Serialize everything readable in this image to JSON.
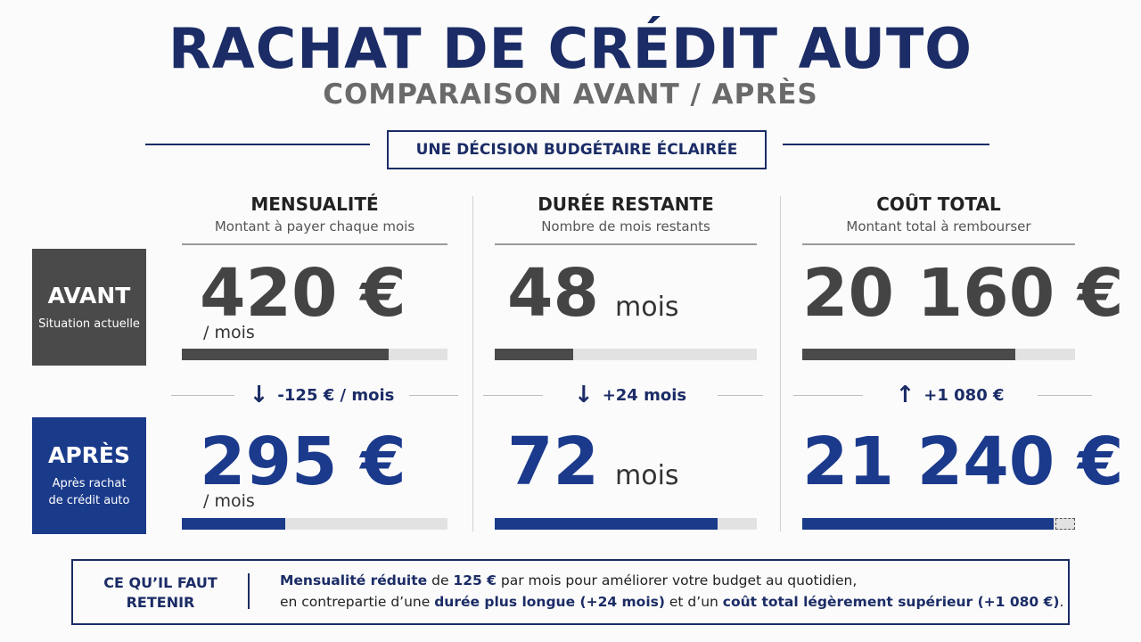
{
  "header": {
    "title": "RACHAT DE CRÉDIT AUTO",
    "subtitle": "COMPARAISON AVANT / APRÈS",
    "tagline": "UNE DÉCISION BUDGÉTAIRE ÉCLAIRÉE"
  },
  "rows": {
    "before": {
      "label": "AVANT",
      "caption": [
        "Situation actuelle"
      ]
    },
    "after": {
      "label": "APRÈS",
      "caption": [
        "Après rachat",
        "de crédit auto"
      ]
    }
  },
  "columns": [
    {
      "title": "MENSUALITÉ",
      "subtitle": "Montant à payer chaque mois",
      "before": {
        "value": "420 €",
        "unit": "/ mois"
      },
      "change": "-125 € / mois",
      "after": {
        "value": "295 €",
        "unit": "/ mois"
      }
    },
    {
      "title": "DURÉE RESTANTE",
      "subtitle": "Nombre de mois restants",
      "before": {
        "value": "48",
        "unit": "mois"
      },
      "change": "+24 mois",
      "after": {
        "value": "72",
        "unit": "mois"
      }
    },
    {
      "title": "COÛT TOTAL",
      "subtitle": "Montant total à rembourser",
      "before": {
        "value": "20 160 €"
      },
      "change": "+1 080 €",
      "after": {
        "value": "21 240 €"
      }
    }
  ],
  "summary": {
    "label": [
      "CE QU’IL FAUT",
      "RETENIR"
    ],
    "lines": [
      [
        "Mensualité réduite",
        " de ",
        "125 €",
        " par mois pour améliorer votre budget au quotidien,"
      ],
      [
        "en contrepartie d’une ",
        "durée plus longue (+24 mois)",
        " et d’un ",
        "coût total légèrement supérieur  (+1 080 €)",
        "."
      ]
    ]
  }
}
